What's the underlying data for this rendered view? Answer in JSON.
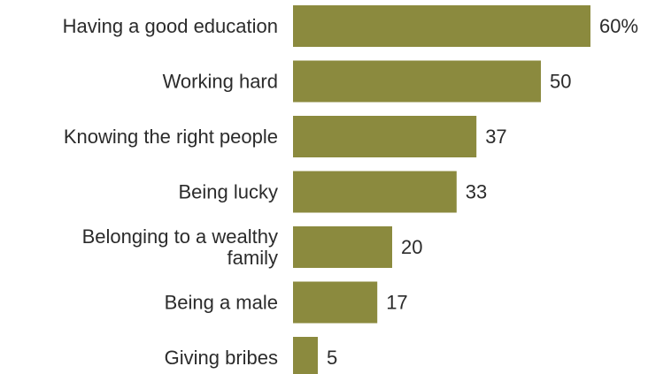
{
  "chart_data": {
    "type": "bar",
    "orientation": "horizontal",
    "categories": [
      [
        "Having a good education"
      ],
      [
        "Working hard"
      ],
      [
        "Knowing the right people"
      ],
      [
        "Being lucky"
      ],
      [
        "Belonging to a wealthy",
        "family"
      ],
      [
        "Being a male"
      ],
      [
        "Giving bribes"
      ]
    ],
    "values": [
      60,
      50,
      37,
      33,
      20,
      17,
      5
    ],
    "value_labels": [
      "60%",
      "50",
      "37",
      "33",
      "20",
      "17",
      "5"
    ],
    "xlim": [
      0,
      60
    ],
    "grid": false,
    "bar_color": "#8b8a3e",
    "text_color": "#2b2b2b"
  }
}
